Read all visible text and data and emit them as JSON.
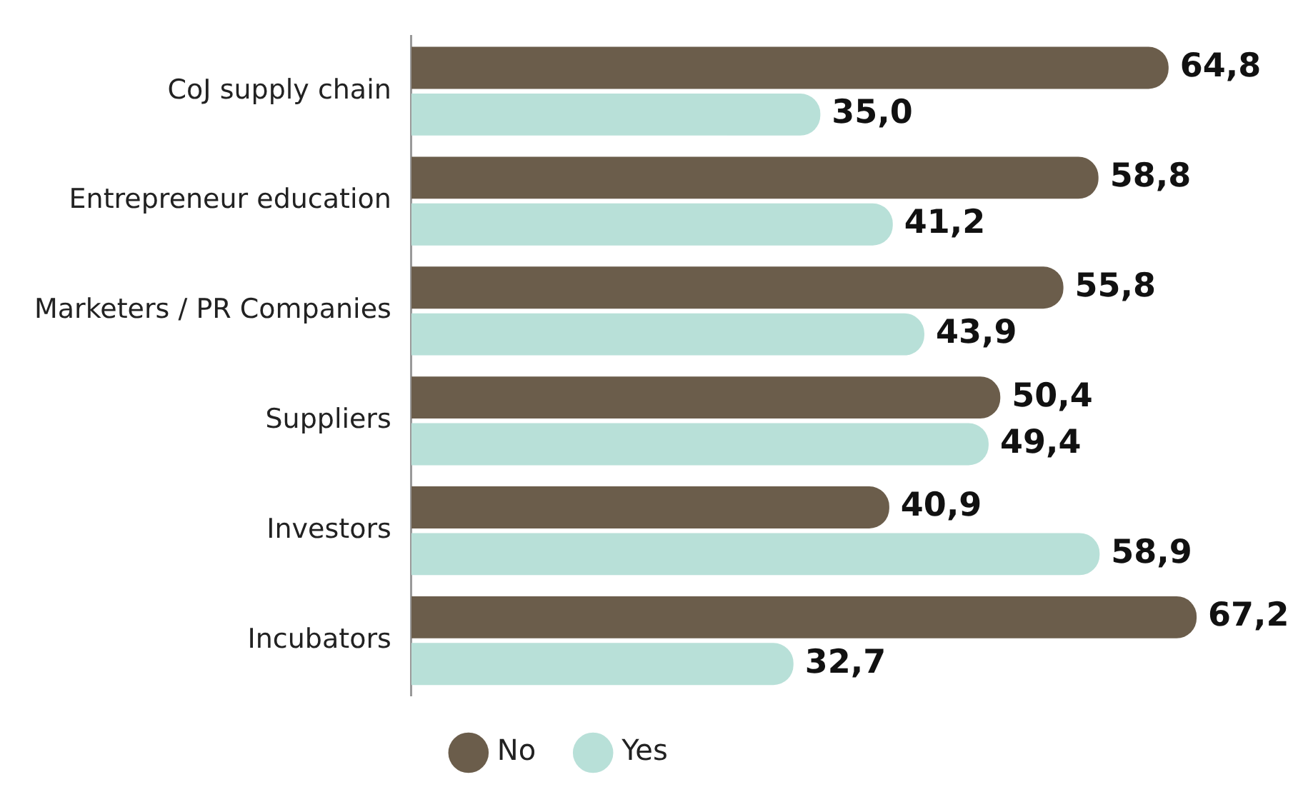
{
  "chart_data": {
    "type": "bar",
    "orientation": "horizontal",
    "categories": [
      "CoJ supply chain",
      "Entrepreneur education",
      "Marketers / PR Companies",
      "Suppliers",
      "Investors",
      "Incubators"
    ],
    "series": [
      {
        "name": "No",
        "color": "#6b5d4b",
        "values": [
          64.8,
          58.8,
          55.8,
          50.4,
          40.9,
          67.2
        ],
        "value_labels": [
          "64,8",
          "58,8",
          "55,8",
          "50,4",
          "40,9",
          "67,2"
        ]
      },
      {
        "name": "Yes",
        "color": "#b8e0d8",
        "values": [
          35.0,
          41.2,
          43.9,
          49.4,
          58.9,
          32.7
        ],
        "value_labels": [
          "35,0",
          "41,2",
          "43,9",
          "49,4",
          "58,9",
          "32,7"
        ]
      }
    ],
    "legend": "bottom"
  }
}
